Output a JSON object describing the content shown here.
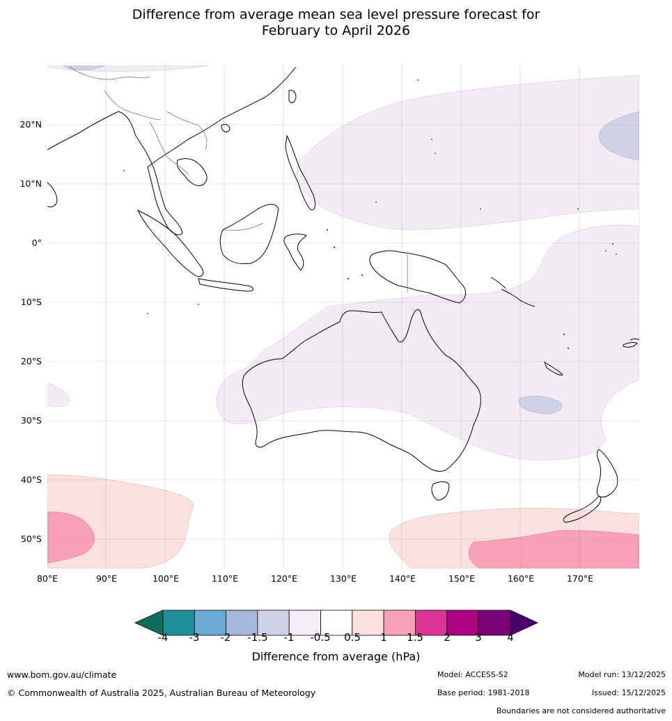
{
  "title": {
    "line1": "Difference from average mean sea level pressure forecast for",
    "line2": "February to April 2026"
  },
  "map": {
    "latitude_labels": [
      "20°N",
      "10°N",
      "0°",
      "10°S",
      "20°S",
      "30°S",
      "40°S",
      "50°S"
    ],
    "longitude_labels": [
      "80°E",
      "90°E",
      "100°E",
      "110°E",
      "120°E",
      "130°E",
      "140°E",
      "150°E",
      "160°E",
      "170°E"
    ],
    "anomaly_regions": [
      {
        "name": "west-pacific-weak-low",
        "category": "-1 to -0.5"
      },
      {
        "name": "australia-weak-low",
        "category": "-1 to -0.5"
      },
      {
        "name": "east-of-philippines-low",
        "category": "-1.5 to -1"
      },
      {
        "name": "coral-sea-low",
        "category": "-1.5 to -1"
      },
      {
        "name": "southern-ocean-west-high",
        "category": "0.5 to 1"
      },
      {
        "name": "southern-ocean-west-core",
        "category": "1 to 1.5"
      },
      {
        "name": "southern-ocean-east-high",
        "category": "0.5 to 1"
      },
      {
        "name": "southern-ocean-east-core",
        "category": "1 to 1.5"
      }
    ]
  },
  "colorbar": {
    "tick_labels": [
      "-4",
      "-3",
      "-2",
      "-1.5",
      "-1",
      "-0.5",
      "0.5",
      "1",
      "1.5",
      "2",
      "3",
      "4"
    ],
    "colors": [
      "#0e6e5c",
      "#1f8f9a",
      "#6aaad2",
      "#a6b8d9",
      "#d0d1e6",
      "#f3eef6",
      "#ffffff",
      "#fde0e0",
      "#f8a0b8",
      "#dd3497",
      "#ae017e",
      "#7a0177",
      "#49006a"
    ],
    "title": "Difference from average (hPa)"
  },
  "footer": {
    "website": "www.bom.gov.au/climate",
    "copyright": "© Commonwealth of Australia 2025, Australian Bureau of Meteorology",
    "model": "Model: ACCESS-S2",
    "base_period": "Base period: 1981-2018",
    "model_run": "Model run: 13/12/2025",
    "issued": "Issued: 15/12/2025",
    "disclaimer": "Boundaries are not considered authoritative"
  }
}
